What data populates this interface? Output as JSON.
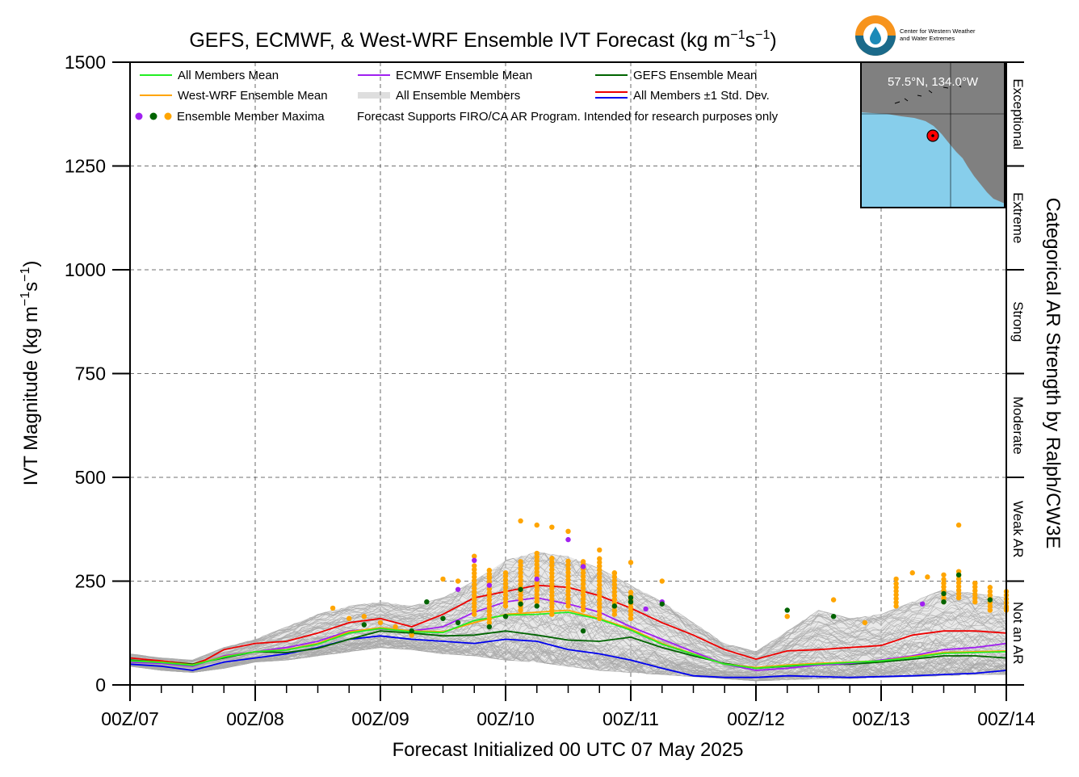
{
  "title_prefix": "GEFS, ECMWF, & West-WRF Ensemble IVT Forecast (kg m",
  "title_exp1": "−1",
  "title_mid": "s",
  "title_exp2": "−1",
  "title_suffix": ")",
  "logo_text_line1": "Center for Western Weather",
  "logo_text_line2": "and Water Extremes",
  "map_label": "57.5°N, 134.0°W",
  "chart_data": {
    "type": "line",
    "xlabel": "Forecast Initialized 00 UTC 07 May 2025",
    "ylabel_prefix": "IVT Magnitude (kg m",
    "ylabel_exp1": "−1",
    "ylabel_mid": "s",
    "ylabel_exp2": "−1",
    "ylabel_suffix": ")",
    "right_axis_label": "Categorical AR Strength by Ralph/CW3E",
    "x_range_days": [
      7,
      14
    ],
    "x_ticks": [
      {
        "day": 7,
        "label": "00Z/07"
      },
      {
        "day": 8,
        "label": "00Z/08"
      },
      {
        "day": 9,
        "label": "00Z/09"
      },
      {
        "day": 10,
        "label": "00Z/10"
      },
      {
        "day": 11,
        "label": "00Z/11"
      },
      {
        "day": 12,
        "label": "00Z/12"
      },
      {
        "day": 13,
        "label": "00Z/13"
      },
      {
        "day": 14,
        "label": "00Z/14"
      }
    ],
    "ylim": [
      0,
      1500
    ],
    "y_ticks": [
      0,
      250,
      500,
      750,
      1000,
      1250,
      1500
    ],
    "grid": true,
    "categories": [
      {
        "label": "Not an AR",
        "from": 0,
        "to": 250
      },
      {
        "label": "Weak AR",
        "from": 250,
        "to": 500
      },
      {
        "label": "Moderate",
        "from": 500,
        "to": 750
      },
      {
        "label": "Strong",
        "from": 750,
        "to": 1000
      },
      {
        "label": "Extreme",
        "from": 1000,
        "to": 1250
      },
      {
        "label": "Exceptional",
        "from": 1250,
        "to": 1500
      }
    ],
    "legend": {
      "placement": "top-left",
      "entries": [
        {
          "label": "All Members Mean",
          "color": "#22ee22"
        },
        {
          "label": "ECMWF Ensemble Mean",
          "color": "#a020f0"
        },
        {
          "label": "GEFS Ensemble Mean",
          "color": "#006400"
        },
        {
          "label": "West-WRF Ensemble Mean",
          "color": "#ffa500"
        },
        {
          "label": "All Ensemble Members",
          "color": "#a9a9a9"
        },
        {
          "label": "All Members ±1 Std. Dev.",
          "color": "#ee0000",
          "color2": "#0000ee"
        },
        {
          "label": "Ensemble Member Maxima",
          "colors": [
            "#a020f0",
            "#006400",
            "#ffa500"
          ]
        }
      ],
      "note": "Forecast Supports FIRO/CA AR Program. Intended for research purposes only"
    },
    "series": [
      {
        "name": "All Ensemble Members",
        "color": "#a9a9a9",
        "band": {
          "x": [
            7.0,
            7.25,
            7.5,
            7.75,
            8.0,
            8.25,
            8.5,
            8.75,
            9.0,
            9.25,
            9.5,
            9.75,
            10.0,
            10.25,
            10.5,
            10.75,
            11.0,
            11.25,
            11.5,
            11.75,
            12.0,
            12.25,
            12.5,
            12.75,
            13.0,
            13.25,
            13.5,
            13.75,
            14.0
          ],
          "low": [
            45,
            35,
            30,
            40,
            55,
            60,
            70,
            80,
            90,
            85,
            75,
            70,
            60,
            55,
            45,
            35,
            30,
            25,
            20,
            15,
            10,
            12,
            15,
            15,
            18,
            20,
            22,
            25,
            25
          ],
          "high": [
            75,
            65,
            60,
            90,
            110,
            140,
            170,
            190,
            200,
            190,
            210,
            250,
            300,
            320,
            310,
            280,
            240,
            200,
            150,
            100,
            80,
            130,
            180,
            160,
            170,
            200,
            230,
            220,
            210
          ]
        }
      },
      {
        "name": "All Members ±1 Std. Dev.",
        "color": "#ee0000",
        "x": [
          7.0,
          7.25,
          7.5,
          7.6,
          7.75,
          8.0,
          8.25,
          8.5,
          8.75,
          9.0,
          9.25,
          9.5,
          9.75,
          10.0,
          10.25,
          10.5,
          10.75,
          11.0,
          11.25,
          11.5,
          11.75,
          12.0,
          12.25,
          12.5,
          12.75,
          13.0,
          13.25,
          13.5,
          13.75,
          14.0
        ],
        "y": [
          65,
          58,
          50,
          60,
          85,
          100,
          105,
          125,
          150,
          160,
          140,
          170,
          210,
          225,
          240,
          235,
          215,
          185,
          150,
          120,
          85,
          62,
          82,
          85,
          90,
          95,
          120,
          130,
          130,
          125
        ]
      },
      {
        "name": "All Members ±1 Std. Dev.",
        "color": "#0000ee",
        "x": [
          7.0,
          7.25,
          7.5,
          7.75,
          8.0,
          8.25,
          8.5,
          8.75,
          9.0,
          9.25,
          9.5,
          9.75,
          10.0,
          10.25,
          10.5,
          10.75,
          11.0,
          11.25,
          11.5,
          11.75,
          12.0,
          12.25,
          12.5,
          12.75,
          13.0,
          13.25,
          13.5,
          13.75,
          14.0
        ],
        "y": [
          50,
          45,
          35,
          55,
          65,
          75,
          90,
          110,
          118,
          110,
          105,
          100,
          110,
          105,
          85,
          75,
          60,
          40,
          22,
          18,
          18,
          22,
          20,
          18,
          20,
          22,
          25,
          28,
          35
        ]
      },
      {
        "name": "GEFS Ensemble Mean",
        "color": "#006400",
        "x": [
          7.0,
          7.25,
          7.5,
          7.75,
          8.0,
          8.25,
          8.5,
          8.75,
          9.0,
          9.25,
          9.5,
          9.75,
          10.0,
          10.25,
          10.5,
          10.75,
          11.0,
          11.25,
          11.5,
          11.75,
          12.0,
          12.25,
          12.5,
          12.75,
          13.0,
          13.25,
          13.5,
          13.75,
          14.0
        ],
        "y": [
          60,
          55,
          50,
          65,
          80,
          78,
          88,
          110,
          130,
          125,
          118,
          120,
          130,
          120,
          108,
          105,
          115,
          90,
          70,
          52,
          40,
          45,
          50,
          50,
          55,
          62,
          70,
          70,
          65
        ]
      },
      {
        "name": "ECMWF Ensemble Mean",
        "color": "#a020f0",
        "x": [
          7.0,
          7.25,
          7.5,
          7.75,
          8.0,
          8.25,
          8.5,
          8.75,
          9.0,
          9.25,
          9.5,
          9.75,
          10.0,
          10.25,
          10.5,
          10.75,
          11.0,
          11.25,
          11.5,
          11.75,
          12.0,
          12.25,
          12.5,
          12.75,
          13.0,
          13.25,
          13.5,
          13.75,
          14.0
        ],
        "y": [
          55,
          52,
          45,
          70,
          80,
          90,
          105,
          130,
          135,
          130,
          140,
          175,
          200,
          210,
          195,
          175,
          140,
          110,
          80,
          50,
          35,
          40,
          48,
          52,
          60,
          70,
          85,
          90,
          100
        ]
      },
      {
        "name": "West-WRF Ensemble Mean",
        "color": "#ffa500",
        "x": [
          7.0,
          7.25,
          7.5,
          7.75,
          8.0,
          8.25,
          8.5,
          8.75,
          9.0,
          9.25,
          9.5,
          9.75,
          10.0,
          10.25,
          10.5,
          10.75,
          11.0,
          11.25,
          11.5,
          11.75,
          12.0,
          12.25,
          12.5,
          12.75,
          13.0,
          13.25,
          13.5,
          13.75,
          14.0
        ],
        "y": [
          58,
          55,
          48,
          68,
          80,
          85,
          100,
          128,
          138,
          130,
          128,
          150,
          170,
          175,
          180,
          160,
          135,
          100,
          75,
          50,
          42,
          48,
          52,
          55,
          58,
          68,
          78,
          80,
          82
        ]
      },
      {
        "name": "All Members Mean",
        "color": "#22ee22",
        "x": [
          7.0,
          7.25,
          7.5,
          7.75,
          8.0,
          8.25,
          8.5,
          8.75,
          9.0,
          9.25,
          9.5,
          9.75,
          10.0,
          10.25,
          10.5,
          10.75,
          11.0,
          11.25,
          11.5,
          11.75,
          12.0,
          12.25,
          12.5,
          12.75,
          13.0,
          13.25,
          13.5,
          13.75,
          14.0
        ],
        "y": [
          58,
          54,
          47,
          67,
          80,
          84,
          98,
          125,
          136,
          128,
          126,
          155,
          168,
          170,
          175,
          158,
          132,
          98,
          74,
          50,
          40,
          46,
          50,
          54,
          58,
          66,
          76,
          78,
          80
        ]
      }
    ],
    "maxima": {
      "orange": [
        [
          8.62,
          185
        ],
        [
          8.75,
          160
        ],
        [
          8.87,
          165
        ],
        [
          9.0,
          150
        ],
        [
          9.12,
          140
        ],
        [
          9.25,
          120
        ],
        [
          9.5,
          255
        ],
        [
          9.62,
          250
        ],
        [
          9.75,
          310
        ],
        [
          9.87,
          260
        ],
        [
          10.0,
          270
        ],
        [
          10.12,
          395
        ],
        [
          10.25,
          385
        ],
        [
          10.37,
          380
        ],
        [
          10.5,
          370
        ],
        [
          10.62,
          290
        ],
        [
          10.75,
          325
        ],
        [
          10.87,
          270
        ],
        [
          11.0,
          295
        ],
        [
          11.25,
          250
        ],
        [
          12.25,
          165
        ],
        [
          12.62,
          205
        ],
        [
          12.87,
          150
        ],
        [
          13.12,
          255
        ],
        [
          13.25,
          270
        ],
        [
          13.37,
          260
        ],
        [
          13.5,
          265
        ],
        [
          13.62,
          385
        ],
        [
          13.75,
          245
        ],
        [
          13.87,
          235
        ],
        [
          14.0,
          185
        ]
      ],
      "orange_columns": [
        [
          9.75,
          170,
          290
        ],
        [
          9.87,
          150,
          280
        ],
        [
          10.0,
          190,
          270
        ],
        [
          10.12,
          180,
          300
        ],
        [
          10.25,
          200,
          320
        ],
        [
          10.37,
          170,
          310
        ],
        [
          10.5,
          190,
          300
        ],
        [
          10.62,
          180,
          305
        ],
        [
          10.75,
          160,
          310
        ],
        [
          10.87,
          170,
          270
        ],
        [
          11.0,
          160,
          230
        ],
        [
          13.12,
          190,
          250
        ],
        [
          13.5,
          200,
          260
        ],
        [
          13.62,
          210,
          280
        ],
        [
          13.75,
          200,
          250
        ],
        [
          13.87,
          180,
          230
        ],
        [
          14.0,
          180,
          230
        ]
      ],
      "purple": [
        [
          9.62,
          230
        ],
        [
          9.75,
          300
        ],
        [
          9.87,
          240
        ],
        [
          10.25,
          255
        ],
        [
          10.5,
          350
        ],
        [
          10.62,
          285
        ],
        [
          11.12,
          183
        ],
        [
          11.25,
          200
        ],
        [
          13.33,
          195
        ]
      ],
      "green": [
        [
          8.87,
          145
        ],
        [
          9.25,
          130
        ],
        [
          9.37,
          200
        ],
        [
          9.5,
          160
        ],
        [
          9.62,
          150
        ],
        [
          9.87,
          140
        ],
        [
          10.0,
          165
        ],
        [
          10.12,
          230
        ],
        [
          10.12,
          195
        ],
        [
          10.25,
          190
        ],
        [
          10.62,
          130
        ],
        [
          10.87,
          190
        ],
        [
          11.0,
          210
        ],
        [
          11.0,
          200
        ],
        [
          11.25,
          195
        ],
        [
          12.25,
          180
        ],
        [
          12.62,
          165
        ],
        [
          13.5,
          220
        ],
        [
          13.5,
          200
        ],
        [
          13.62,
          265
        ],
        [
          13.87,
          205
        ]
      ]
    }
  }
}
